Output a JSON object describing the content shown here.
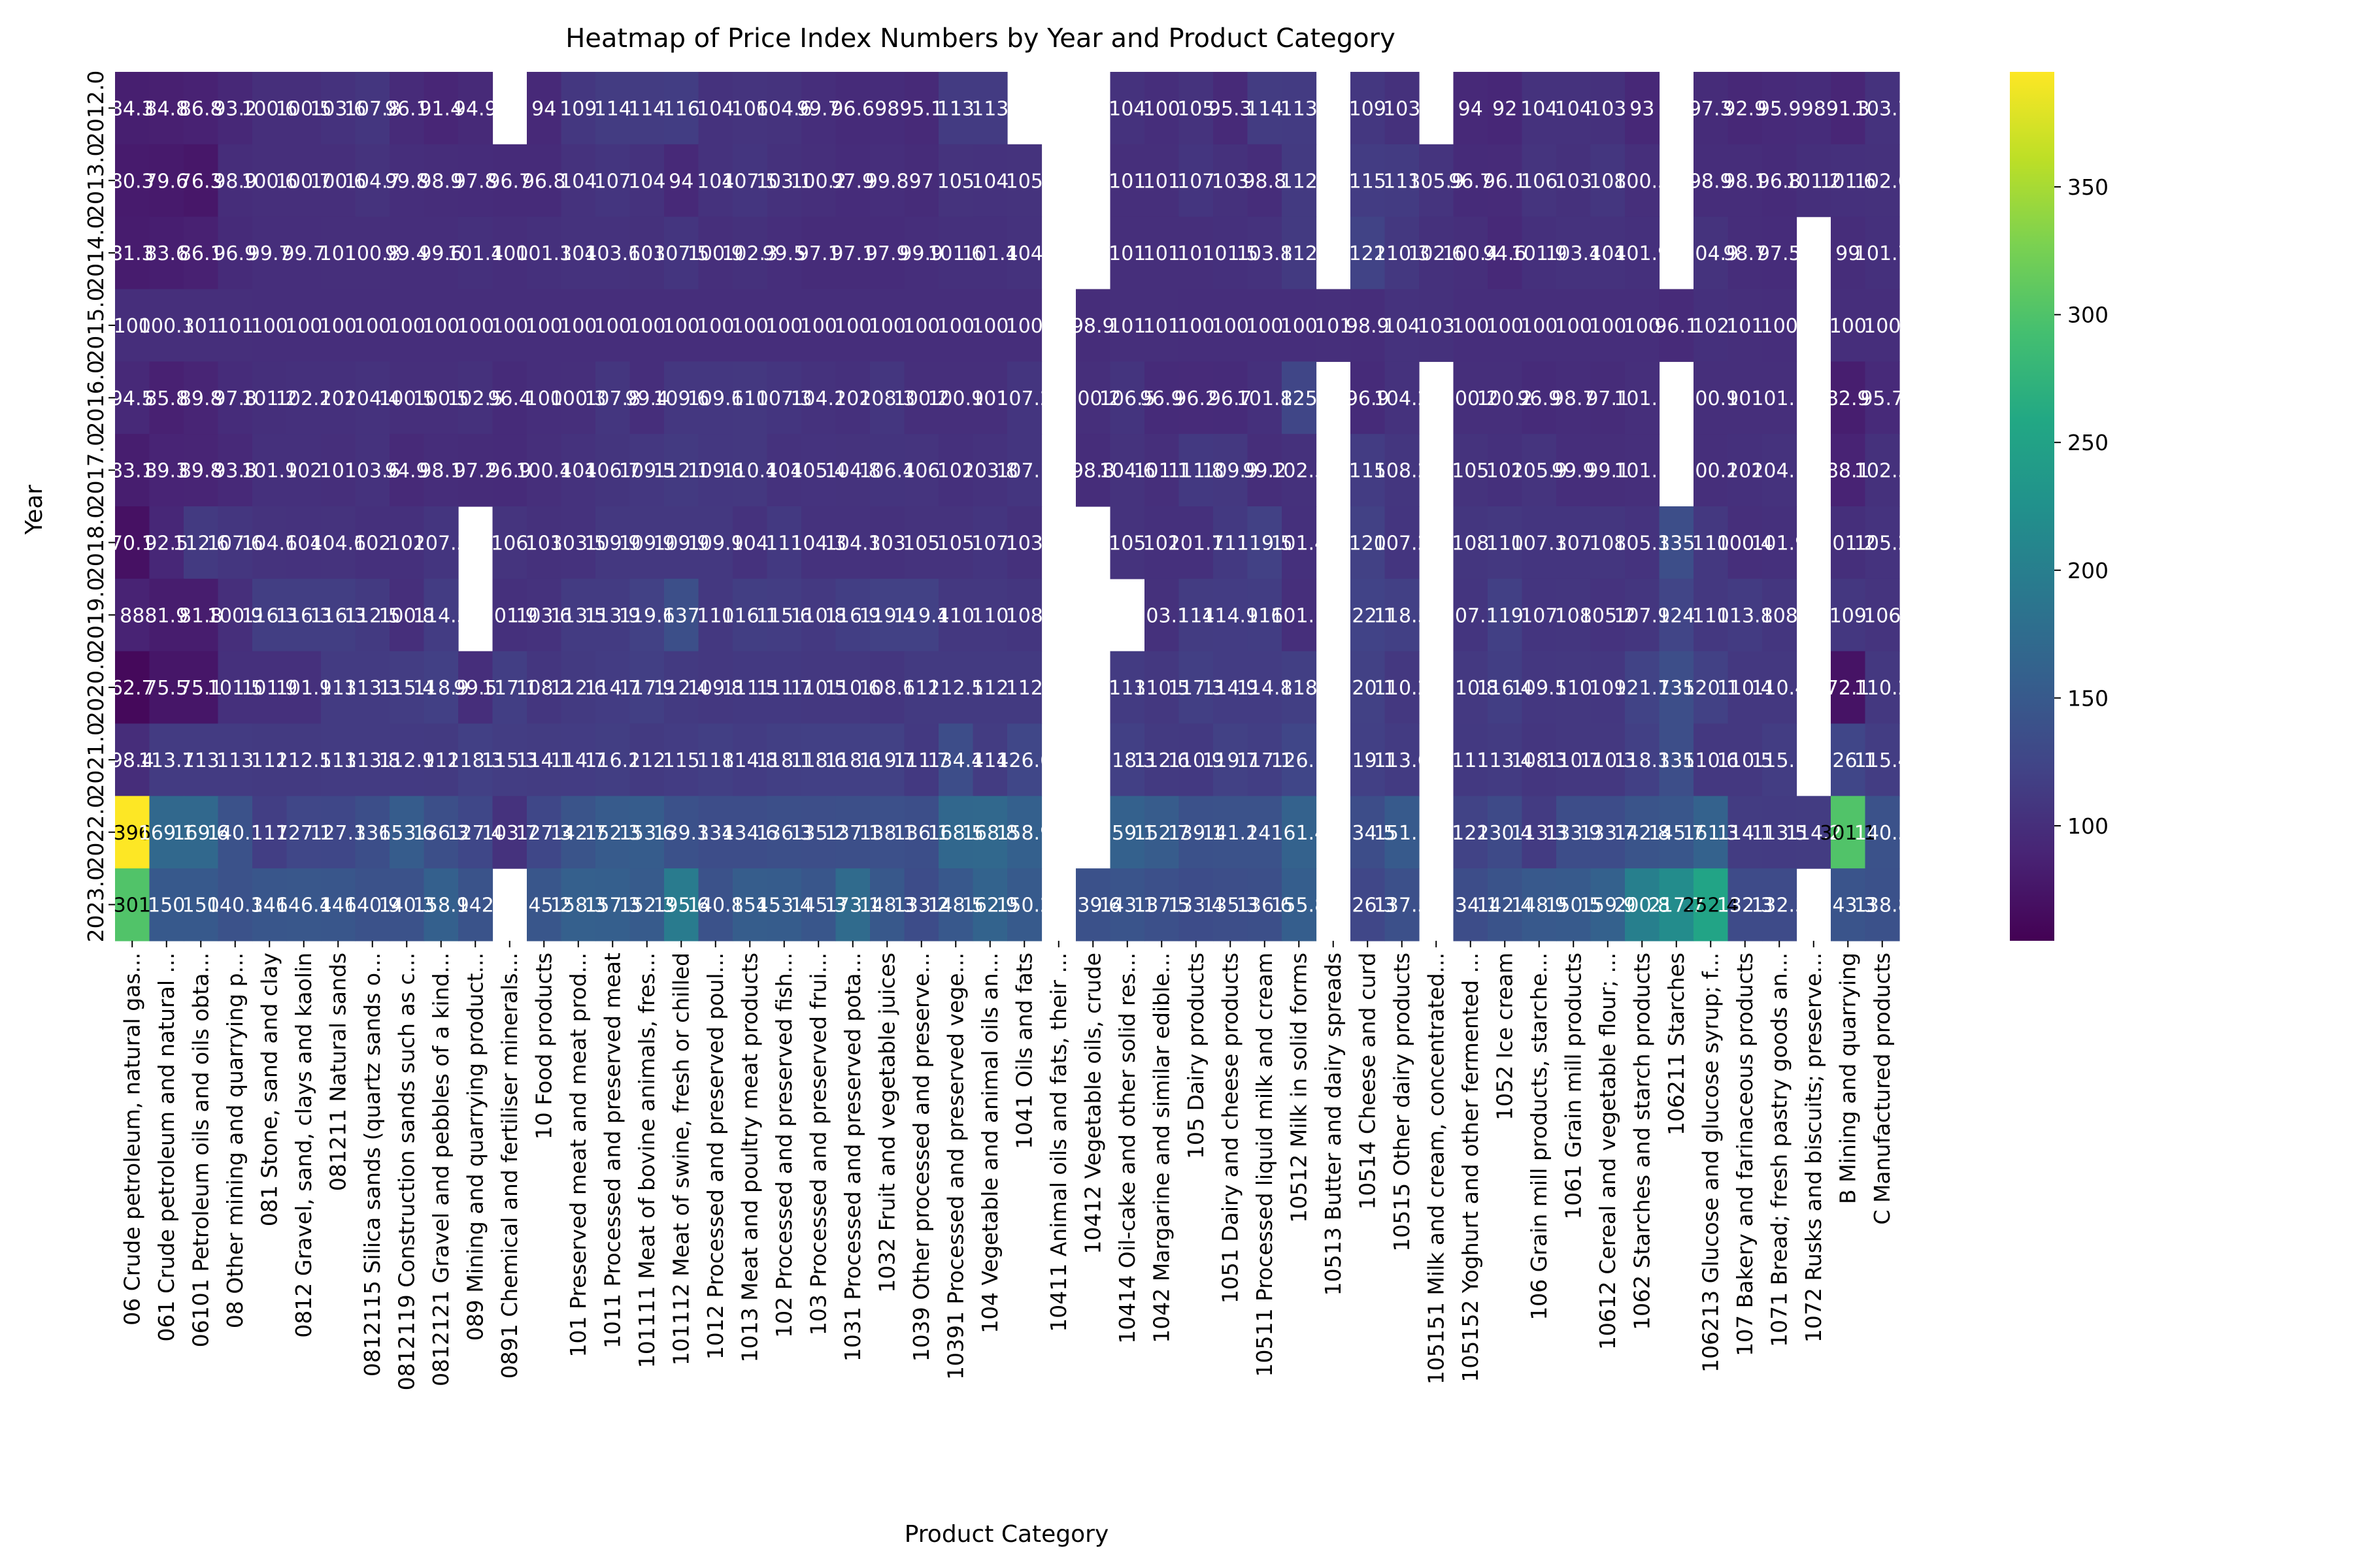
{
  "chart_data": {
    "type": "heatmap",
    "title": "Heatmap of Price Index Numbers by Year and Product Category",
    "xlabel": "Product Category",
    "ylabel": "Year",
    "colormap": "viridis",
    "colorbar": {
      "min": 55,
      "max": 395,
      "ticks": [
        100,
        150,
        200,
        250,
        300,
        350
      ]
    },
    "years": [
      "2012.0",
      "2013.0",
      "2014.0",
      "2015.0",
      "2016.0",
      "2017.0",
      "2018.0",
      "2019.0",
      "2020.0",
      "2021.0",
      "2022.0",
      "2023.0"
    ],
    "categories": [
      "06 Crude petroleum, natural gas...",
      "061 Crude petroleum and natural ...",
      "06101 Petroleum oils and oils obta...",
      "08 Other mining and quarrying p...",
      "081 Stone, sand and clay",
      "0812 Gravel, sand, clays and kaolin",
      "081211 Natural sands",
      "0812115 Silica sands (quartz sands o...",
      "0812119 Construction sands such as c...",
      "0812121 Gravel and pebbles of a kind...",
      "089 Mining and quarrying product...",
      "0891 Chemical and fertiliser minerals...",
      "10 Food products",
      "101 Preserved meat and meat prod...",
      "1011 Processed and preserved meat",
      "101111 Meat of bovine animals, fres...",
      "101112 Meat of swine, fresh or chilled",
      "1012 Processed and preserved poul...",
      "1013 Meat and poultry meat products",
      "102 Processed and preserved fish...",
      "103 Processed and preserved frui...",
      "1031 Processed and preserved pota...",
      "1032 Fruit and vegetable juices",
      "1039 Other processed and preserve...",
      "10391 Processed and preserved vege...",
      "104 Vegetable and animal oils an...",
      "1041 Oils and fats",
      "10411 Animal oils and fats, their ...",
      "10412 Vegetable oils, crude",
      "10414 Oil-cake and other solid res...",
      "1042 Margarine and similar edible...",
      "105 Dairy products",
      "1051 Dairy and cheese products",
      "10511 Processed liquid milk and cream",
      "10512 Milk in solid forms",
      "10513 Butter and dairy spreads",
      "10514 Cheese and curd",
      "10515 Other dairy products",
      "105151 Milk and cream, concentrated...",
      "105152 Yoghurt and other fermented ...",
      "1052 Ice cream",
      "106 Grain mill products, starche...",
      "1061 Grain mill products",
      "10612 Cereal and vegetable flour; ...",
      "1062 Starches and starch products",
      "106211 Starches",
      "106213 Glucose and glucose syrup; f...",
      "107 Bakery and farinaceous products",
      "1071 Bread; fresh pastry goods an...",
      "1072 Rusks and biscuits; preserve...",
      "B Mining and quarrying",
      "C Manufactured products"
    ],
    "values": [
      [
        84.3,
        84.8,
        86.8,
        93.2,
        100.6,
        100.5,
        103.6,
        107.8,
        96.1,
        91.4,
        94.9,
        null,
        94.0,
        109.0,
        114.0,
        114.0,
        116.0,
        104.0,
        106.0,
        104.6,
        99.7,
        96.6,
        98.0,
        95.1,
        113.0,
        113.0,
        null,
        null,
        null,
        104.0,
        100.0,
        105.0,
        95.3,
        114.0,
        113.0,
        null,
        109.0,
        103.0,
        null,
        94.0,
        92.0,
        104.0,
        104.0,
        103.0,
        93.0,
        null,
        97.3,
        92.9,
        95.9,
        98.0,
        91.3,
        103.7
      ],
      [
        80.3,
        79.6,
        76.3,
        98.9,
        100.6,
        100.7,
        100.6,
        104.7,
        99.8,
        98.9,
        97.8,
        96.7,
        96.8,
        104.0,
        107.0,
        104.0,
        94.0,
        104.0,
        107.5,
        103.1,
        100.2,
        97.9,
        99.8,
        97.0,
        105.0,
        104.0,
        105.0,
        null,
        null,
        101.0,
        101.0,
        107.0,
        103.0,
        98.8,
        112.0,
        null,
        115.0,
        113.0,
        105.9,
        96.7,
        96.1,
        106.0,
        103.0,
        108.0,
        100.5,
        null,
        98.9,
        98.1,
        96.8,
        101.2,
        101.6,
        102.6
      ],
      [
        81.3,
        83.6,
        86.1,
        96.9,
        99.7,
        99.7,
        101.0,
        100.8,
        99.4,
        99.6,
        101.4,
        100.0,
        101.3,
        104.0,
        103.6,
        103.0,
        107.5,
        100.9,
        102.3,
        99.5,
        97.1,
        97.1,
        97.9,
        99.9,
        101.6,
        101.4,
        104.0,
        null,
        null,
        101.0,
        101.0,
        101.0,
        101.5,
        103.8,
        112.0,
        null,
        122.0,
        110.3,
        102.6,
        100.4,
        94.6,
        101.9,
        103.4,
        104.0,
        101.9,
        null,
        104.9,
        98.7,
        97.5,
        null,
        99.0,
        101.7
      ],
      [
        100.0,
        100.3,
        101.0,
        101.0,
        100.0,
        100.0,
        100.0,
        100.0,
        100.0,
        100.0,
        100.0,
        100.0,
        100.0,
        100.0,
        100.0,
        100.0,
        100.0,
        100.0,
        100.0,
        100.0,
        100.0,
        100.0,
        100.0,
        100.0,
        100.0,
        100.0,
        100.0,
        null,
        98.9,
        101.0,
        101.0,
        100.0,
        100.0,
        100.0,
        100.0,
        101.0,
        98.9,
        104.0,
        103.0,
        100.0,
        100.0,
        100.0,
        100.0,
        100.0,
        100.0,
        96.1,
        102.0,
        101.0,
        100.0,
        null,
        100.0,
        100.0
      ],
      [
        94.5,
        85.8,
        89.8,
        97.8,
        101.2,
        102.2,
        102.0,
        104.4,
        100.5,
        100.5,
        102.5,
        96.4,
        100.0,
        100.3,
        107.8,
        99.4,
        109.6,
        109.6,
        110.0,
        107.3,
        104.2,
        102.0,
        108.3,
        100.2,
        100.9,
        101.0,
        107.2,
        null,
        100.2,
        106.5,
        96.9,
        96.2,
        96.7,
        101.8,
        125.0,
        null,
        96.9,
        104.2,
        null,
        100.2,
        100.2,
        96.9,
        98.7,
        97.1,
        101.1,
        null,
        100.9,
        101.0,
        101.1,
        null,
        82.9,
        95.7
      ],
      [
        83.1,
        89.3,
        89.8,
        93.8,
        101.9,
        102.0,
        101.0,
        103.6,
        94.9,
        98.1,
        97.2,
        96.9,
        100.4,
        104.0,
        106.7,
        109.5,
        112.1,
        109.6,
        110.4,
        104.0,
        105.4,
        104.8,
        106.4,
        106.0,
        102.0,
        103.8,
        107.1,
        null,
        98.8,
        104.6,
        101.1,
        111.8,
        109.9,
        99.2,
        102.5,
        null,
        115.0,
        108.2,
        null,
        105.0,
        102.0,
        105.9,
        99.9,
        99.1,
        101.1,
        null,
        100.2,
        102.0,
        104.1,
        null,
        88.1,
        102.5
      ],
      [
        70.1,
        92.5,
        112.6,
        107.6,
        104.6,
        104.0,
        104.6,
        102.0,
        102.0,
        107.5,
        null,
        106.0,
        103.0,
        103.5,
        109.9,
        109.9,
        109.9,
        109.9,
        104.0,
        111.0,
        104.3,
        104.3,
        103.0,
        105.0,
        105.0,
        107.0,
        103.0,
        null,
        null,
        105.0,
        102.0,
        101.7,
        111.0,
        119.5,
        101.4,
        null,
        120.0,
        107.2,
        null,
        108.0,
        110.0,
        107.3,
        107.0,
        108.0,
        105.3,
        135.0,
        110.0,
        100.4,
        101.9,
        null,
        101.2,
        105.2
      ],
      [
        88.0,
        81.9,
        81.8,
        100.9,
        116.3,
        116.3,
        116.3,
        112.5,
        100.8,
        114.5,
        null,
        101.9,
        103.6,
        113.5,
        113.9,
        119.6,
        137.0,
        110.0,
        116.1,
        115.6,
        110.8,
        116.9,
        119.4,
        119.4,
        110.0,
        110.0,
        108.0,
        null,
        null,
        null,
        103.1,
        114.0,
        114.9,
        116.0,
        101.1,
        null,
        122.1,
        118.5,
        null,
        107.1,
        119.0,
        107.0,
        108.0,
        105.2,
        107.9,
        124.0,
        110.0,
        113.8,
        108.0,
        null,
        109.0,
        106.0
      ],
      [
        62.7,
        75.5,
        75.1,
        101.5,
        101.9,
        101.9,
        113.0,
        113.3,
        115.4,
        118.9,
        99.5,
        117.1,
        108.2,
        112.6,
        114.7,
        117.9,
        112.4,
        109.8,
        111.5,
        111.7,
        110.5,
        110.6,
        108.6,
        112.0,
        112.5,
        112.0,
        112.0,
        null,
        null,
        113.0,
        110.5,
        117.3,
        114.9,
        114.8,
        118.0,
        null,
        120.1,
        110.2,
        null,
        110.8,
        116.4,
        109.5,
        110.0,
        109.0,
        121.7,
        135.0,
        120.1,
        110.4,
        110.4,
        null,
        72.1,
        110.2
      ],
      [
        98.4,
        113.7,
        113.0,
        113.0,
        112.0,
        112.5,
        113.0,
        113.8,
        112.9,
        112.0,
        118.3,
        115.3,
        114.1,
        114.7,
        116.2,
        112.0,
        115.0,
        118.0,
        114.8,
        118.1,
        118.6,
        118.6,
        119.7,
        111.7,
        134.4,
        114.0,
        126.6,
        null,
        null,
        118.3,
        112.6,
        110.9,
        119.7,
        117.1,
        126.1,
        null,
        119.1,
        113.6,
        null,
        111.0,
        113.4,
        108.3,
        110.7,
        110.3,
        118.3,
        135.0,
        110.6,
        110.5,
        115.1,
        null,
        126.1,
        115.4
      ],
      [
        396.0,
        169.1,
        169.6,
        140.1,
        117.0,
        127.1,
        127.3,
        136.0,
        153.6,
        136.3,
        127.4,
        103.7,
        127.3,
        142.7,
        152.3,
        153.6,
        139.3,
        134.0,
        134.6,
        136.3,
        135.2,
        137.1,
        138.1,
        136.1,
        168.5,
        168.8,
        158.9,
        null,
        null,
        159.1,
        152.7,
        139.1,
        141.2,
        141.0,
        161.4,
        null,
        134.5,
        151.1,
        null,
        122.0,
        130.4,
        113.3,
        133.9,
        133.7,
        142.8,
        145.7,
        161.3,
        114.1,
        113.5,
        114.2,
        301.1,
        140.5
      ],
      [
        301.0,
        150.0,
        150.0,
        140.3,
        146.0,
        146.4,
        146.0,
        140.9,
        140.3,
        158.9,
        142.0,
        null,
        145.2,
        158.3,
        157.3,
        152.3,
        195.6,
        140.8,
        154.0,
        153.4,
        145.3,
        173.1,
        148.3,
        133.2,
        148.5,
        162.9,
        150.2,
        null,
        139.6,
        143.1,
        137.5,
        133.4,
        135.3,
        136.6,
        155.8,
        null,
        126.3,
        137.5,
        null,
        134.1,
        142.4,
        148.9,
        150.5,
        159.9,
        200.8,
        217.7,
        252.4,
        132.3,
        132.3,
        null,
        143.3,
        138.8
      ]
    ]
  }
}
